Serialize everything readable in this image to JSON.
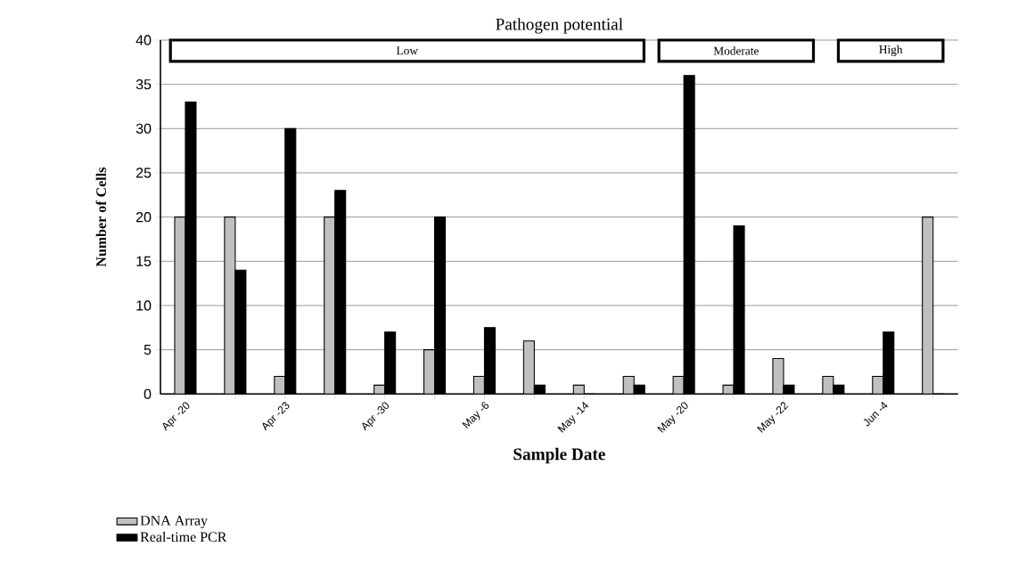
{
  "chart_data": {
    "type": "bar",
    "title": "Pathogen potential",
    "xlabel": "Sample Date",
    "ylabel": "Number of Cells",
    "categories": [
      "Apr -20",
      null,
      "Apr -23",
      null,
      "Apr -30",
      null,
      "May -6",
      null,
      "May -14",
      null,
      "May -20",
      null,
      "May -22",
      null,
      "Jun -4",
      null
    ],
    "series": [
      {
        "name": "DNA Array",
        "color": "#c0c0c0",
        "values": [
          20,
          20,
          2,
          20,
          1,
          5,
          2,
          6,
          1,
          2,
          2,
          1,
          4,
          2,
          2,
          20
        ]
      },
      {
        "name": "Real-time PCR",
        "color": "#000000",
        "values": [
          33,
          14,
          30,
          23,
          7,
          20,
          7.5,
          1,
          0,
          1,
          36,
          19,
          1,
          1,
          7,
          0
        ]
      }
    ],
    "ylim": [
      0,
      40
    ],
    "yticks": [
      0,
      5,
      10,
      15,
      20,
      25,
      30,
      35,
      40
    ],
    "grid": "y",
    "legend": "bottom left",
    "annotations": [
      "Low",
      "Moderate",
      "High"
    ]
  }
}
